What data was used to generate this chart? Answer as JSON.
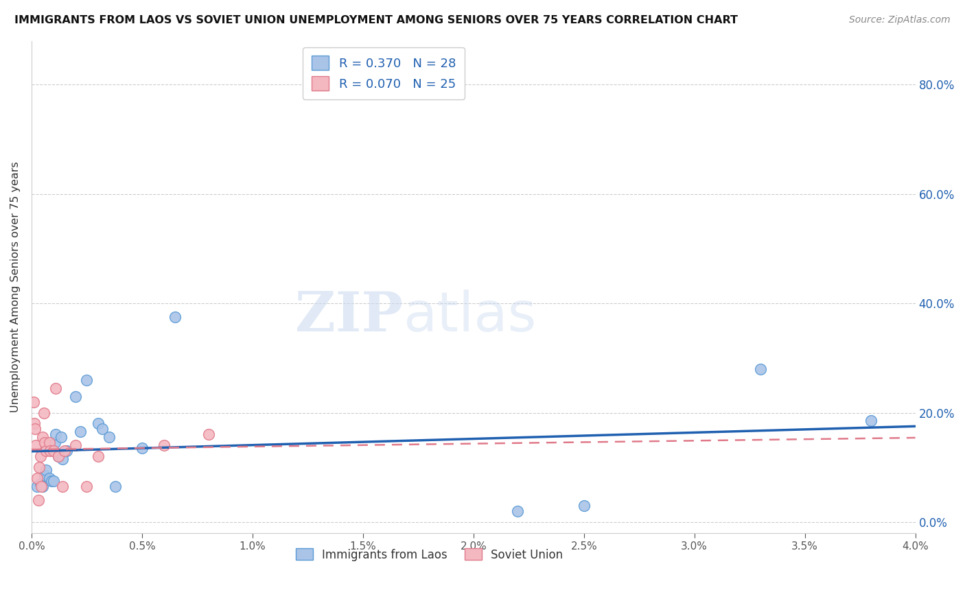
{
  "title": "IMMIGRANTS FROM LAOS VS SOVIET UNION UNEMPLOYMENT AMONG SENIORS OVER 75 YEARS CORRELATION CHART",
  "source": "Source: ZipAtlas.com",
  "ylabel": "Unemployment Among Seniors over 75 years",
  "xlim": [
    0.0,
    0.04
  ],
  "ylim": [
    -0.02,
    0.88
  ],
  "laos_color": "#aac4e8",
  "laos_edge_color": "#5b9bd5",
  "soviet_color": "#f4b8c1",
  "soviet_edge_color": "#e07a8a",
  "laos_line_color": "#2060b0",
  "soviet_line_color": "#e07a8a",
  "R_laos": 0.37,
  "N_laos": 28,
  "R_soviet": 0.07,
  "N_soviet": 25,
  "legend_label_laos": "Immigrants from Laos",
  "legend_label_soviet": "Soviet Union",
  "watermark_zip": "ZIP",
  "watermark_atlas": "atlas",
  "background_color": "#ffffff",
  "grid_color": "#cccccc",
  "laos_x": [
    0.00025,
    0.0004,
    0.0005,
    0.0006,
    0.00065,
    0.0008,
    0.0009,
    0.001,
    0.00105,
    0.0011,
    0.0012,
    0.0013,
    0.00135,
    0.0014,
    0.0016,
    0.002,
    0.0022,
    0.0025,
    0.003,
    0.0032,
    0.0035,
    0.0038,
    0.005,
    0.0065,
    0.022,
    0.025,
    0.033,
    0.038
  ],
  "laos_y": [
    0.065,
    0.07,
    0.065,
    0.085,
    0.095,
    0.08,
    0.075,
    0.075,
    0.145,
    0.16,
    0.12,
    0.125,
    0.155,
    0.115,
    0.13,
    0.23,
    0.165,
    0.26,
    0.18,
    0.17,
    0.155,
    0.065,
    0.135,
    0.375,
    0.02,
    0.03,
    0.28,
    0.185
  ],
  "soviet_x": [
    8e-05,
    0.00012,
    0.00015,
    0.0002,
    0.00025,
    0.0003,
    0.00035,
    0.0004,
    0.00045,
    0.0005,
    0.00055,
    0.0006,
    0.00065,
    0.0008,
    0.00085,
    0.001,
    0.0011,
    0.0012,
    0.0014,
    0.0015,
    0.002,
    0.0025,
    0.003,
    0.006,
    0.008
  ],
  "soviet_y": [
    0.22,
    0.18,
    0.17,
    0.14,
    0.08,
    0.04,
    0.1,
    0.12,
    0.065,
    0.155,
    0.2,
    0.145,
    0.13,
    0.145,
    0.13,
    0.13,
    0.245,
    0.12,
    0.065,
    0.13,
    0.14,
    0.065,
    0.12,
    0.14,
    0.16
  ]
}
